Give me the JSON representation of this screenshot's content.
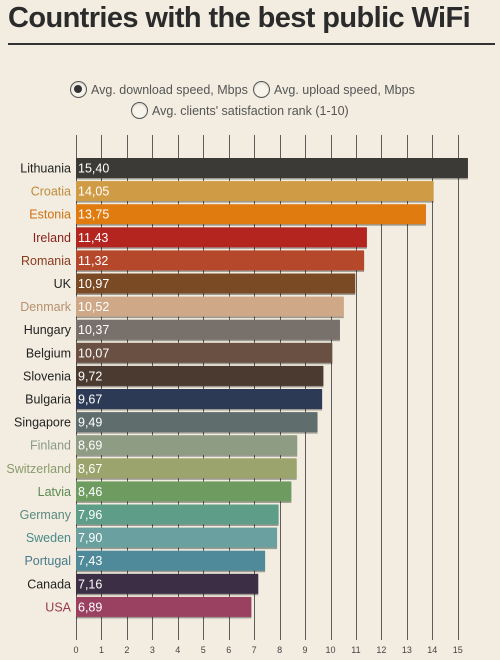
{
  "title": "Countries with the best public WiFi",
  "options": [
    {
      "label": "Avg. download speed, Mbps",
      "selected": true
    },
    {
      "label": "Avg. upload speed, Mbps",
      "selected": false
    },
    {
      "label": "Avg. clients' satisfaction rank (1-10)",
      "selected": false
    }
  ],
  "chart_data": {
    "type": "bar",
    "orientation": "horizontal",
    "categories": [
      "Lithuania",
      "Croatia",
      "Estonia",
      "Ireland",
      "Romania",
      "UK",
      "Denmark",
      "Hungary",
      "Belgium",
      "Slovenia",
      "Bulgaria",
      "Singapore",
      "Finland",
      "Switzerland",
      "Latvia",
      "Germany",
      "Sweden",
      "Portugal",
      "Canada",
      "USA"
    ],
    "values": [
      15.4,
      14.05,
      13.75,
      11.43,
      11.32,
      10.97,
      10.52,
      10.37,
      10.07,
      9.72,
      9.67,
      9.49,
      8.69,
      8.67,
      8.46,
      7.96,
      7.9,
      7.43,
      7.16,
      6.89
    ],
    "value_labels": [
      "15,40",
      "14,05",
      "13,75",
      "11,43",
      "11,32",
      "10,97",
      "10,52",
      "10,37",
      "10,07",
      "9,72",
      "9,67",
      "9,49",
      "8,69",
      "8,67",
      "8,46",
      "7,96",
      "7,90",
      "7,43",
      "7,16",
      "6,89"
    ],
    "colors": [
      "#3b3a36",
      "#cf9b45",
      "#e07b0f",
      "#b5251f",
      "#b5472a",
      "#7a4a25",
      "#cfa888",
      "#78706a",
      "#6a4f43",
      "#4a3a30",
      "#2d3a55",
      "#5f6e6c",
      "#8f9c84",
      "#9aa46c",
      "#6e9c60",
      "#5e9e88",
      "#6aa0a0",
      "#4f8a9a",
      "#3b2e45",
      "#9a4060"
    ],
    "label_colors": [
      "#222",
      "#c08a3a",
      "#d07010",
      "#8a1f1a",
      "#8a3a20",
      "#222",
      "#b89070",
      "#222",
      "#222",
      "#222",
      "#222",
      "#222",
      "#8a9a88",
      "#8a9a6a",
      "#5a8a50",
      "#5a8a80",
      "#4a8a8a",
      "#4a7a8a",
      "#222",
      "#9a3a50"
    ],
    "x_ticks": [
      0,
      1,
      2,
      3,
      4,
      5,
      6,
      7,
      8,
      9,
      10,
      11,
      12,
      13,
      14,
      15
    ],
    "xlim": [
      0,
      15.5
    ],
    "grid": true
  }
}
